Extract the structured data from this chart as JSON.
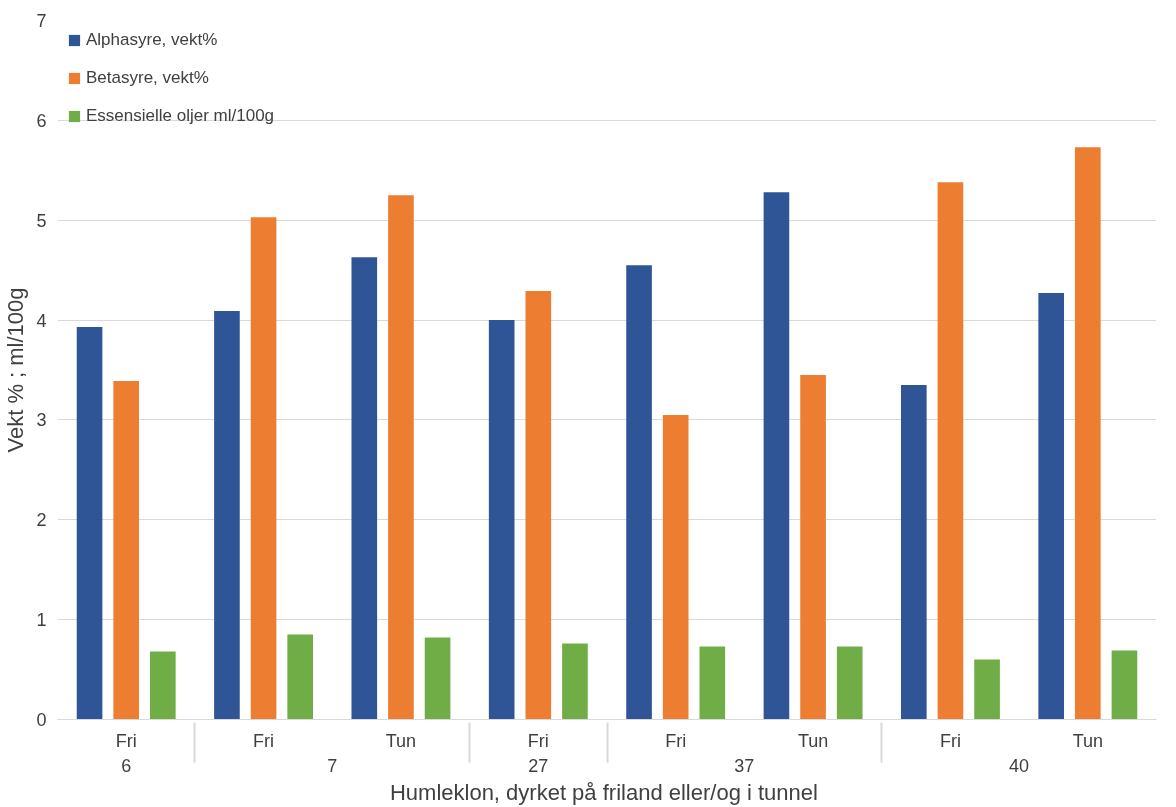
{
  "chart_data": {
    "type": "bar",
    "xlabel": "Humleklon,  dyrket på friland eller/og i tunnel",
    "ylabel": "Vekt % ; ml/100g",
    "categories": [
      [
        "6",
        "Fri"
      ],
      [
        "7",
        "Fri"
      ],
      [
        null,
        "Tun"
      ],
      [
        "27",
        "Fri"
      ],
      [
        "37",
        "Fri"
      ],
      [
        null,
        "Tun"
      ],
      [
        "40",
        "Fri"
      ],
      [
        null,
        "Tun"
      ]
    ],
    "series": [
      {
        "name": "Alphasyre, vekt%",
        "color": "#2f5597",
        "values": [
          3.93,
          4.09,
          4.63,
          4.0,
          4.55,
          5.28,
          3.35,
          4.27
        ]
      },
      {
        "name": "Betasyre, vekt%",
        "color": "#ed7d31",
        "values": [
          3.39,
          5.03,
          5.25,
          4.29,
          3.05,
          3.45,
          5.38,
          5.73
        ]
      },
      {
        "name": "Essensielle oljer ml/100g",
        "color": "#70ad47",
        "values": [
          0.68,
          0.85,
          0.82,
          0.76,
          0.73,
          0.73,
          0.6,
          0.69
        ]
      }
    ],
    "ylim": [
      0,
      7
    ],
    "yticks": [
      0,
      1,
      2,
      3,
      4,
      5,
      6,
      7
    ],
    "grid": "y",
    "legend": "top left"
  }
}
